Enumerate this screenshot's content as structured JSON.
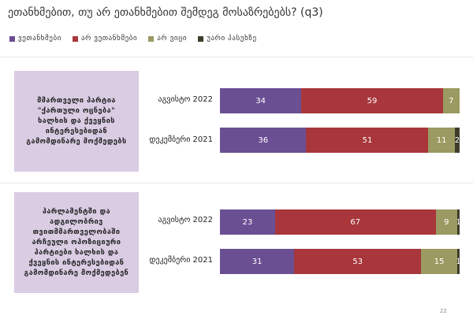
{
  "title": "ეთანხმებით, თუ არ ეთანხმებით შემდეგ მოსაზრებებს? (q3)",
  "page_number": "22",
  "legend": [
    {
      "label": "ვეთანხმები",
      "color": "#6a4f93"
    },
    {
      "label": "არ ვეთანხმები",
      "color": "#a8363a"
    },
    {
      "label": "არ ვიცი",
      "color": "#9a9a62"
    },
    {
      "label": "უარი პასუხზე",
      "color": "#3d3d2a"
    }
  ],
  "chart_data": {
    "type": "bar",
    "orientation": "horizontal",
    "stacked": true,
    "series_names": [
      "ვეთანხმები",
      "არ ვეთანხმები",
      "არ ვიცი",
      "უარი პასუხზე"
    ],
    "colors": [
      "#6a4f93",
      "#a8363a",
      "#9a9a62",
      "#3d3d2a"
    ],
    "xlim": [
      0,
      100
    ],
    "groups": [
      {
        "question": "მმართველი პარტია \"ქართული ოცნება\" ხალხის და ქვეყნის ინტერესებიდან გამომდინარე მოქმედებს",
        "rows": [
          {
            "label": "აგვისტო 2022",
            "values": [
              34,
              59,
              7,
              0
            ],
            "value_labels": [
              "34",
              "59",
              "7",
              ""
            ]
          },
          {
            "label": "დეკემბერი 2021",
            "values": [
              36,
              51,
              11,
              2
            ],
            "value_labels": [
              "36",
              "51",
              "11",
              "2"
            ]
          }
        ]
      },
      {
        "question": "პარლამენტში და ადგილობრივ თვითმმართველობაში არჩეული ოპოზიციური პარტიები ხალხის და ქვეყნის ინტერესებიდან გამომდინარე მოქმედებენ",
        "rows": [
          {
            "label": "აგვისტო 2022",
            "values": [
              23,
              67,
              9,
              1
            ],
            "value_labels": [
              "23",
              "67",
              "9",
              "1"
            ]
          },
          {
            "label": "დეკემბერი 2021",
            "values": [
              31,
              53,
              15,
              1
            ],
            "value_labels": [
              "31",
              "53",
              "15",
              "1"
            ]
          }
        ]
      }
    ]
  }
}
